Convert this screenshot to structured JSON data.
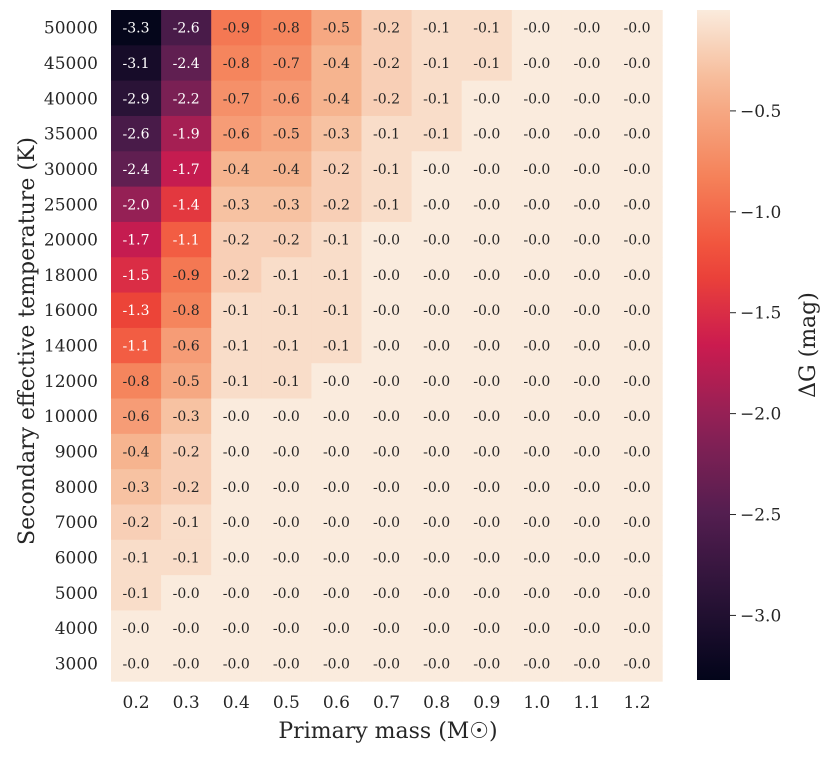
{
  "chart_data": {
    "type": "heatmap",
    "xlabel": "Primary mass (M☉)",
    "ylabel": "Secondary effective temperature (K)",
    "colorbar_label": "ΔG (mag)",
    "x_categories": [
      "0.2",
      "0.3",
      "0.4",
      "0.5",
      "0.6",
      "0.7",
      "0.8",
      "0.9",
      "1.0",
      "1.1",
      "1.2"
    ],
    "y_categories": [
      "50000",
      "45000",
      "40000",
      "35000",
      "30000",
      "25000",
      "20000",
      "18000",
      "16000",
      "14000",
      "12000",
      "10000",
      "9000",
      "8000",
      "7000",
      "6000",
      "5000",
      "4000",
      "3000"
    ],
    "values": [
      [
        -3.3,
        -2.6,
        -0.9,
        -0.8,
        -0.5,
        -0.2,
        -0.1,
        -0.1,
        -0.0,
        -0.0,
        -0.0
      ],
      [
        -3.1,
        -2.4,
        -0.8,
        -0.7,
        -0.4,
        -0.2,
        -0.1,
        -0.1,
        -0.0,
        -0.0,
        -0.0
      ],
      [
        -2.9,
        -2.2,
        -0.7,
        -0.6,
        -0.4,
        -0.2,
        -0.1,
        -0.0,
        -0.0,
        -0.0,
        -0.0
      ],
      [
        -2.6,
        -1.9,
        -0.6,
        -0.5,
        -0.3,
        -0.1,
        -0.1,
        -0.0,
        -0.0,
        -0.0,
        -0.0
      ],
      [
        -2.4,
        -1.7,
        -0.4,
        -0.4,
        -0.2,
        -0.1,
        -0.0,
        -0.0,
        -0.0,
        -0.0,
        -0.0
      ],
      [
        -2.0,
        -1.4,
        -0.3,
        -0.3,
        -0.2,
        -0.1,
        -0.0,
        -0.0,
        -0.0,
        -0.0,
        -0.0
      ],
      [
        -1.7,
        -1.1,
        -0.2,
        -0.2,
        -0.1,
        -0.0,
        -0.0,
        -0.0,
        -0.0,
        -0.0,
        -0.0
      ],
      [
        -1.5,
        -0.9,
        -0.2,
        -0.1,
        -0.1,
        -0.0,
        -0.0,
        -0.0,
        -0.0,
        -0.0,
        -0.0
      ],
      [
        -1.3,
        -0.8,
        -0.1,
        -0.1,
        -0.1,
        -0.0,
        -0.0,
        -0.0,
        -0.0,
        -0.0,
        -0.0
      ],
      [
        -1.1,
        -0.6,
        -0.1,
        -0.1,
        -0.1,
        -0.0,
        -0.0,
        -0.0,
        -0.0,
        -0.0,
        -0.0
      ],
      [
        -0.8,
        -0.5,
        -0.1,
        -0.1,
        -0.0,
        -0.0,
        -0.0,
        -0.0,
        -0.0,
        -0.0,
        -0.0
      ],
      [
        -0.6,
        -0.3,
        -0.0,
        -0.0,
        -0.0,
        -0.0,
        -0.0,
        -0.0,
        -0.0,
        -0.0,
        -0.0
      ],
      [
        -0.4,
        -0.2,
        -0.0,
        -0.0,
        -0.0,
        -0.0,
        -0.0,
        -0.0,
        -0.0,
        -0.0,
        -0.0
      ],
      [
        -0.3,
        -0.2,
        -0.0,
        -0.0,
        -0.0,
        -0.0,
        -0.0,
        -0.0,
        -0.0,
        -0.0,
        -0.0
      ],
      [
        -0.2,
        -0.1,
        -0.0,
        -0.0,
        -0.0,
        -0.0,
        -0.0,
        -0.0,
        -0.0,
        -0.0,
        -0.0
      ],
      [
        -0.1,
        -0.1,
        -0.0,
        -0.0,
        -0.0,
        -0.0,
        -0.0,
        -0.0,
        -0.0,
        -0.0,
        -0.0
      ],
      [
        -0.1,
        -0.0,
        -0.0,
        -0.0,
        -0.0,
        -0.0,
        -0.0,
        -0.0,
        -0.0,
        -0.0,
        -0.0
      ],
      [
        -0.0,
        -0.0,
        -0.0,
        -0.0,
        -0.0,
        -0.0,
        -0.0,
        -0.0,
        -0.0,
        -0.0,
        -0.0
      ],
      [
        -0.0,
        -0.0,
        -0.0,
        -0.0,
        -0.0,
        -0.0,
        -0.0,
        -0.0,
        -0.0,
        -0.0,
        -0.0
      ]
    ],
    "colorbar": {
      "colormap": "rocket",
      "vmin": -3.32,
      "vmax": 0.0,
      "ticks": [
        -3.0,
        -2.5,
        -2.0,
        -1.5,
        -1.0,
        -0.5
      ],
      "tick_labels": [
        "−3.0",
        "−2.5",
        "−2.0",
        "−1.5",
        "−1.0",
        "−0.5"
      ]
    },
    "grid": false,
    "legend": "colorbar-right"
  }
}
